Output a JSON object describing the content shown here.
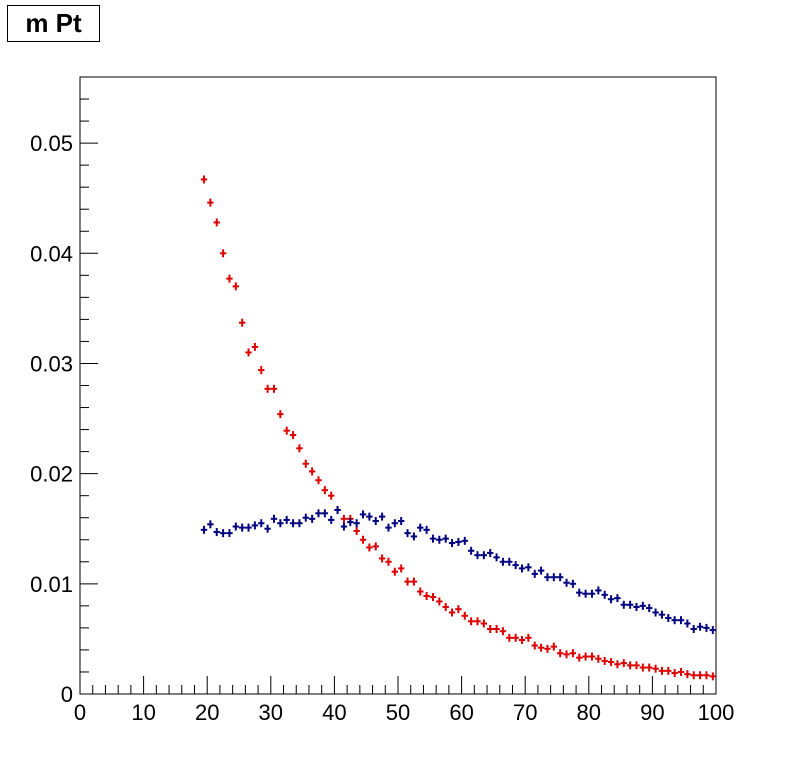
{
  "chart_data": {
    "type": "scatter",
    "title": "m Pt",
    "xlabel": "",
    "ylabel": "",
    "xlim": [
      0,
      100
    ],
    "ylim": [
      0,
      0.056
    ],
    "x_ticks": [
      0,
      10,
      20,
      30,
      40,
      50,
      60,
      70,
      80,
      90,
      100
    ],
    "x_tick_labels": [
      "0",
      "10",
      "20",
      "30",
      "40",
      "50",
      "60",
      "70",
      "80",
      "90",
      "100"
    ],
    "y_ticks": [
      0,
      0.01,
      0.02,
      0.03,
      0.04,
      0.05
    ],
    "y_tick_labels": [
      "0",
      "0.01",
      "0.02",
      "0.03",
      "0.04",
      "0.05"
    ],
    "grid": false,
    "legend": "none",
    "bin_width": 1,
    "series": [
      {
        "color": "#dd0000",
        "x": [
          19.5,
          20.5,
          21.5,
          22.5,
          23.5,
          24.5,
          25.5,
          26.5,
          27.5,
          28.5,
          29.5,
          30.5,
          31.5,
          32.5,
          33.5,
          34.5,
          35.5,
          36.5,
          37.5,
          38.5,
          39.5,
          40.5,
          41.5,
          42.5,
          43.5,
          44.5,
          45.5,
          46.5,
          47.5,
          48.5,
          49.5,
          50.5,
          51.5,
          52.5,
          53.5,
          54.5,
          55.5,
          56.5,
          57.5,
          58.5,
          59.5,
          60.5,
          61.5,
          62.5,
          63.5,
          64.5,
          65.5,
          66.5,
          67.5,
          68.5,
          69.5,
          70.5,
          71.5,
          72.5,
          73.5,
          74.5,
          75.5,
          76.5,
          77.5,
          78.5,
          79.5,
          80.5,
          81.5,
          82.5,
          83.5,
          84.5,
          85.5,
          86.5,
          87.5,
          88.5,
          89.5,
          90.5,
          91.5,
          92.5,
          93.5,
          94.5,
          95.5,
          96.5,
          97.5,
          98.5,
          99.5
        ],
        "y": [
          0.0467,
          0.0446,
          0.0428,
          0.04,
          0.0377,
          0.037,
          0.0337,
          0.031,
          0.0315,
          0.0294,
          0.0277,
          0.0277,
          0.0254,
          0.0239,
          0.0235,
          0.0223,
          0.0209,
          0.0202,
          0.0194,
          0.0185,
          0.018,
          0.0167,
          0.0159,
          0.0159,
          0.0148,
          0.014,
          0.0133,
          0.0134,
          0.0123,
          0.012,
          0.0111,
          0.0114,
          0.0102,
          0.0102,
          0.0093,
          0.0089,
          0.0088,
          0.0084,
          0.0079,
          0.0074,
          0.0077,
          0.0071,
          0.0066,
          0.0066,
          0.0064,
          0.0059,
          0.0059,
          0.0057,
          0.0051,
          0.0051,
          0.0049,
          0.0051,
          0.0044,
          0.0042,
          0.0041,
          0.0043,
          0.0037,
          0.0036,
          0.0037,
          0.0033,
          0.0034,
          0.0034,
          0.0032,
          0.003,
          0.0029,
          0.0027,
          0.0028,
          0.0026,
          0.0026,
          0.0024,
          0.0024,
          0.0023,
          0.0021,
          0.0021,
          0.0019,
          0.002,
          0.0018,
          0.0017,
          0.0017,
          0.0017,
          0.0016
        ]
      },
      {
        "color": "#000080",
        "x": [
          19.5,
          20.5,
          21.5,
          22.5,
          23.5,
          24.5,
          25.5,
          26.5,
          27.5,
          28.5,
          29.5,
          30.5,
          31.5,
          32.5,
          33.5,
          34.5,
          35.5,
          36.5,
          37.5,
          38.5,
          39.5,
          40.5,
          41.5,
          42.5,
          43.5,
          44.5,
          45.5,
          46.5,
          47.5,
          48.5,
          49.5,
          50.5,
          51.5,
          52.5,
          53.5,
          54.5,
          55.5,
          56.5,
          57.5,
          58.5,
          59.5,
          60.5,
          61.5,
          62.5,
          63.5,
          64.5,
          65.5,
          66.5,
          67.5,
          68.5,
          69.5,
          70.5,
          71.5,
          72.5,
          73.5,
          74.5,
          75.5,
          76.5,
          77.5,
          78.5,
          79.5,
          80.5,
          81.5,
          82.5,
          83.5,
          84.5,
          85.5,
          86.5,
          87.5,
          88.5,
          89.5,
          90.5,
          91.5,
          92.5,
          93.5,
          94.5,
          95.5,
          96.5,
          97.5,
          98.5,
          99.5
        ],
        "y": [
          0.0149,
          0.0154,
          0.0147,
          0.0146,
          0.0146,
          0.0152,
          0.0151,
          0.0151,
          0.0153,
          0.0155,
          0.015,
          0.0159,
          0.0155,
          0.0158,
          0.0155,
          0.0155,
          0.016,
          0.0159,
          0.0164,
          0.0164,
          0.0158,
          0.0167,
          0.0152,
          0.0156,
          0.0155,
          0.0163,
          0.0161,
          0.0157,
          0.0161,
          0.0151,
          0.0155,
          0.0157,
          0.0146,
          0.0143,
          0.0151,
          0.0149,
          0.0141,
          0.014,
          0.0141,
          0.0137,
          0.0138,
          0.0139,
          0.013,
          0.0126,
          0.0126,
          0.0128,
          0.0124,
          0.012,
          0.012,
          0.0117,
          0.0114,
          0.0115,
          0.0109,
          0.0112,
          0.0106,
          0.0106,
          0.0106,
          0.0101,
          0.01,
          0.0092,
          0.0091,
          0.0091,
          0.0094,
          0.009,
          0.0086,
          0.0087,
          0.0081,
          0.0081,
          0.0079,
          0.008,
          0.0078,
          0.0074,
          0.0072,
          0.0069,
          0.0067,
          0.0067,
          0.0064,
          0.0059,
          0.0061,
          0.006,
          0.0058
        ]
      }
    ]
  }
}
